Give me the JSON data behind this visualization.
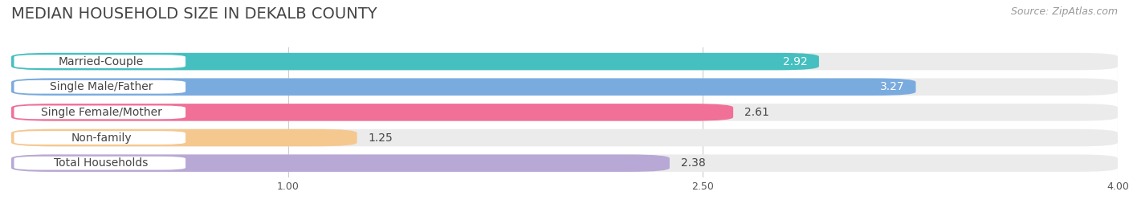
{
  "title": "MEDIAN HOUSEHOLD SIZE IN DEKALB COUNTY",
  "source": "Source: ZipAtlas.com",
  "categories": [
    "Married-Couple",
    "Single Male/Father",
    "Single Female/Mother",
    "Non-family",
    "Total Households"
  ],
  "values": [
    2.92,
    3.27,
    2.61,
    1.25,
    2.38
  ],
  "bar_colors": [
    "#45bfbf",
    "#7aabdf",
    "#f07098",
    "#f5c890",
    "#b8a8d5"
  ],
  "value_inside": [
    true,
    true,
    false,
    false,
    false
  ],
  "xmin": 0.0,
  "xmax": 4.0,
  "xticks": [
    1.0,
    2.5,
    4.0
  ],
  "xtick_labels": [
    "1.00",
    "2.50",
    "4.00"
  ],
  "background_color": "#ffffff",
  "row_bg_color": "#ebebeb",
  "title_fontsize": 14,
  "source_fontsize": 9,
  "label_fontsize": 10,
  "value_fontsize": 10
}
